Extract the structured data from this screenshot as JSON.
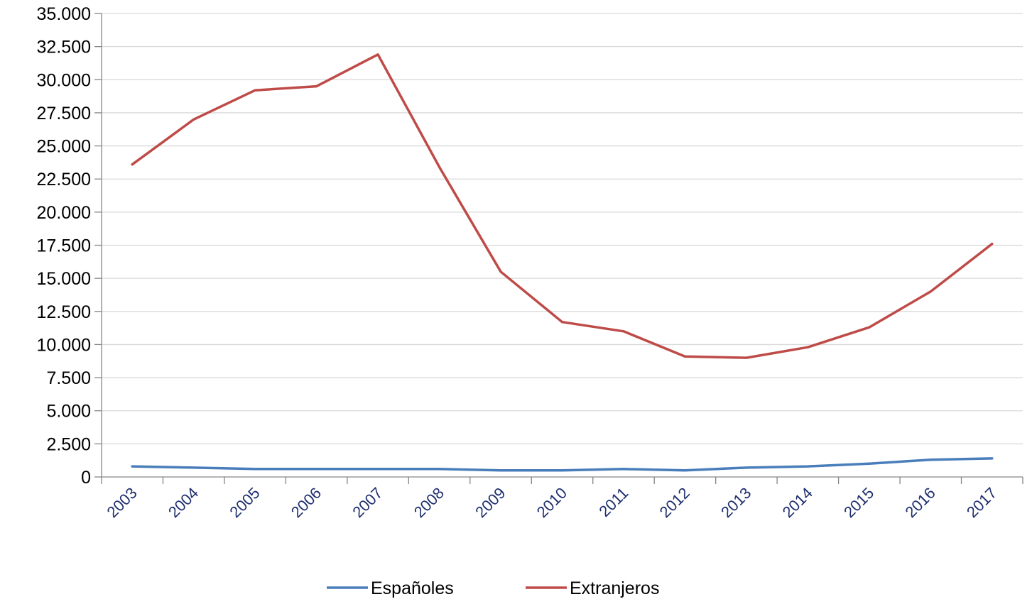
{
  "chart_data": {
    "type": "line",
    "title": "",
    "xlabel": "",
    "ylabel": "",
    "categories": [
      "2003",
      "2004",
      "2005",
      "2006",
      "2007",
      "2008",
      "2009",
      "2010",
      "2011",
      "2012",
      "2013",
      "2014",
      "2015",
      "2016",
      "2017"
    ],
    "ylim": [
      0,
      35000
    ],
    "yticks": [
      0,
      2500,
      5000,
      7500,
      10000,
      12500,
      15000,
      17500,
      20000,
      22500,
      25000,
      27500,
      30000,
      32500,
      35000
    ],
    "ytick_labels": [
      "0",
      "2.500",
      "5.000",
      "7.500",
      "10.000",
      "12.500",
      "15.000",
      "17.500",
      "20.000",
      "22.500",
      "25.000",
      "27.500",
      "30.000",
      "32.500",
      "35.000"
    ],
    "grid": true,
    "legend_position": "bottom",
    "series": [
      {
        "name": "Españoles",
        "color": "#4a7ebb",
        "values": [
          800,
          700,
          600,
          600,
          600,
          600,
          500,
          500,
          600,
          500,
          700,
          800,
          1000,
          1300,
          1400
        ]
      },
      {
        "name": "Extranjeros",
        "color": "#be4b48",
        "values": [
          23600,
          27000,
          29200,
          29500,
          31900,
          23400,
          15500,
          11700,
          11000,
          9100,
          9000,
          9800,
          11300,
          14000,
          17600
        ]
      }
    ]
  }
}
